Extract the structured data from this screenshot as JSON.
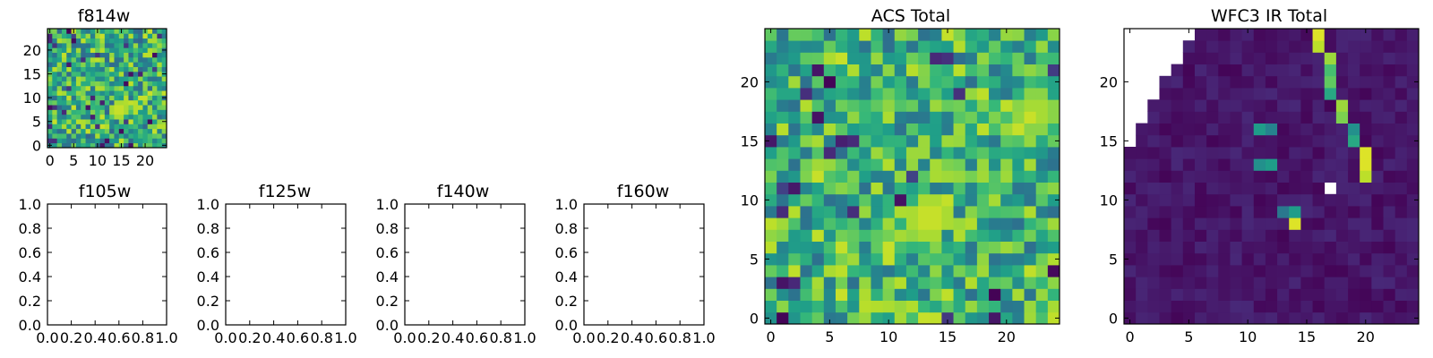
{
  "colors": {
    "colormap": "viridis",
    "viridis_stops": [
      "#440154",
      "#482878",
      "#3e4989",
      "#31688e",
      "#26828e",
      "#1f9e89",
      "#35b779",
      "#6ece58",
      "#b5de2b",
      "#fde725"
    ],
    "axis": "#000000",
    "background": "#ffffff"
  },
  "chart_data": [
    {
      "id": "f814w",
      "title": "f814w",
      "type": "heatmap",
      "colormap": "viridis",
      "grid_shape": [
        25,
        25
      ],
      "xlim": [
        -0.5,
        24.5
      ],
      "ylim": [
        -0.5,
        24.5
      ],
      "xticks": [
        0,
        5,
        10,
        15,
        20
      ],
      "yticks": [
        0,
        5,
        10,
        15,
        20
      ],
      "xtick_labels": [
        "0",
        "5",
        "10",
        "15",
        "20"
      ],
      "ytick_labels": [
        "0",
        "5",
        "10",
        "15",
        "20"
      ],
      "value_range": [
        0,
        1
      ],
      "hotspots": [
        {
          "x": 14.5,
          "y": 7.5,
          "value": 0.95
        }
      ],
      "background_level": 0.62,
      "noise_level": 0.3,
      "seed": 11
    },
    {
      "id": "f105w",
      "title": "f105w",
      "type": "empty-axes",
      "xlim": [
        0.0,
        1.0
      ],
      "ylim": [
        0.0,
        1.0
      ],
      "xticks": [
        0,
        0.2,
        0.4,
        0.6,
        0.8,
        1.0
      ],
      "yticks": [
        0,
        0.2,
        0.4,
        0.6,
        0.8,
        1.0
      ],
      "xtick_labels": [
        "0.0",
        "0.2",
        "0.4",
        "0.6",
        "0.8",
        "1.0"
      ],
      "ytick_labels": [
        "0.0",
        "0.2",
        "0.4",
        "0.6",
        "0.8",
        "1.0"
      ]
    },
    {
      "id": "f125w",
      "title": "f125w",
      "type": "empty-axes",
      "xlim": [
        0.0,
        1.0
      ],
      "ylim": [
        0.0,
        1.0
      ],
      "xticks": [
        0,
        0.2,
        0.4,
        0.6,
        0.8,
        1.0
      ],
      "yticks": [
        0,
        0.2,
        0.4,
        0.6,
        0.8,
        1.0
      ],
      "xtick_labels": [
        "0.0",
        "0.2",
        "0.4",
        "0.6",
        "0.8",
        "1.0"
      ],
      "ytick_labels": [
        "0.0",
        "0.2",
        "0.4",
        "0.6",
        "0.8",
        "1.0"
      ]
    },
    {
      "id": "f140w",
      "title": "f140w",
      "type": "empty-axes",
      "xlim": [
        0.0,
        1.0
      ],
      "ylim": [
        0.0,
        1.0
      ],
      "xticks": [
        0,
        0.2,
        0.4,
        0.6,
        0.8,
        1.0
      ],
      "yticks": [
        0,
        0.2,
        0.4,
        0.6,
        0.8,
        1.0
      ],
      "xtick_labels": [
        "0.0",
        "0.2",
        "0.4",
        "0.6",
        "0.8",
        "1.0"
      ],
      "ytick_labels": [
        "0.0",
        "0.2",
        "0.4",
        "0.6",
        "0.8",
        "1.0"
      ]
    },
    {
      "id": "f160w",
      "title": "f160w",
      "type": "empty-axes",
      "xlim": [
        0.0,
        1.0
      ],
      "ylim": [
        0.0,
        1.0
      ],
      "xticks": [
        0,
        0.2,
        0.4,
        0.6,
        0.8,
        1.0
      ],
      "yticks": [
        0,
        0.2,
        0.4,
        0.6,
        0.8,
        1.0
      ],
      "xtick_labels": [
        "0.0",
        "0.2",
        "0.4",
        "0.6",
        "0.8",
        "1.0"
      ],
      "ytick_labels": [
        "0.0",
        "0.2",
        "0.4",
        "0.6",
        "0.8",
        "1.0"
      ]
    },
    {
      "id": "acs-total",
      "title": "ACS Total",
      "type": "heatmap",
      "colormap": "viridis",
      "grid_shape": [
        25,
        25
      ],
      "xlim": [
        -0.5,
        24.5
      ],
      "ylim": [
        -0.5,
        24.5
      ],
      "xticks": [
        0,
        5,
        10,
        15,
        20
      ],
      "yticks": [
        0,
        5,
        10,
        15,
        20
      ],
      "xtick_labels": [
        "0",
        "5",
        "10",
        "15",
        "20"
      ],
      "ytick_labels": [
        "0",
        "5",
        "10",
        "15",
        "20"
      ],
      "value_range": [
        0,
        1
      ],
      "hotspots": [
        {
          "x": 13.5,
          "y": 8.5,
          "value": 0.95
        },
        {
          "x": 22.5,
          "y": 17.5,
          "value": 0.9
        }
      ],
      "background_level": 0.64,
      "noise_level": 0.28,
      "seed": 37
    },
    {
      "id": "wfc3-ir-total",
      "title": "WFC3 IR Total",
      "type": "heatmap",
      "colormap": "viridis",
      "grid_shape": [
        25,
        25
      ],
      "xlim": [
        -0.5,
        24.5
      ],
      "ylim": [
        -0.5,
        24.5
      ],
      "xticks": [
        0,
        5,
        10,
        15,
        20
      ],
      "yticks": [
        0,
        5,
        10,
        15,
        20
      ],
      "xtick_labels": [
        "0",
        "5",
        "10",
        "15",
        "20"
      ],
      "ytick_labels": [
        "0",
        "5",
        "10",
        "15",
        "20"
      ],
      "value_range": [
        0,
        1
      ],
      "background_level": 0.06,
      "noise_level": 0.05,
      "seed": 73,
      "bright_cells": [
        {
          "x": 16,
          "y": 24,
          "value": 0.95
        },
        {
          "x": 16,
          "y": 23,
          "value": 0.9
        },
        {
          "x": 17,
          "y": 22,
          "value": 0.85
        },
        {
          "x": 17,
          "y": 21,
          "value": 0.7
        },
        {
          "x": 17,
          "y": 20,
          "value": 0.75
        },
        {
          "x": 17,
          "y": 19,
          "value": 0.6
        },
        {
          "x": 18,
          "y": 18,
          "value": 0.85
        },
        {
          "x": 18,
          "y": 17,
          "value": 0.8
        },
        {
          "x": 19,
          "y": 16,
          "value": 0.5
        },
        {
          "x": 19,
          "y": 15,
          "value": 0.6
        },
        {
          "x": 20,
          "y": 14,
          "value": 0.95
        },
        {
          "x": 20,
          "y": 13,
          "value": 0.95
        },
        {
          "x": 20,
          "y": 12,
          "value": 0.9
        },
        {
          "x": 11,
          "y": 16,
          "value": 0.55
        },
        {
          "x": 12,
          "y": 16,
          "value": 0.45
        },
        {
          "x": 11,
          "y": 13,
          "value": 0.5
        },
        {
          "x": 12,
          "y": 13,
          "value": 0.55
        },
        {
          "x": 13,
          "y": 9,
          "value": 0.4
        },
        {
          "x": 14,
          "y": 9,
          "value": 0.55
        },
        {
          "x": 14,
          "y": 8,
          "value": 0.95
        }
      ],
      "missing_cells": [
        {
          "rows": [
            24
          ],
          "cols": [
            0,
            1,
            2,
            3,
            4,
            5
          ]
        },
        {
          "rows": [
            23
          ],
          "cols": [
            0,
            1,
            2,
            3,
            4
          ]
        },
        {
          "rows": [
            22
          ],
          "cols": [
            0,
            1,
            2,
            3,
            4
          ]
        },
        {
          "rows": [
            21
          ],
          "cols": [
            0,
            1,
            2,
            3
          ]
        },
        {
          "rows": [
            20
          ],
          "cols": [
            0,
            1,
            2
          ]
        },
        {
          "rows": [
            19
          ],
          "cols": [
            0,
            1,
            2
          ]
        },
        {
          "rows": [
            18
          ],
          "cols": [
            0,
            1
          ]
        },
        {
          "rows": [
            17
          ],
          "cols": [
            0,
            1
          ]
        },
        {
          "rows": [
            16
          ],
          "cols": [
            0
          ]
        },
        {
          "rows": [
            15
          ],
          "cols": [
            0
          ]
        },
        {
          "rows": [
            11
          ],
          "cols": [
            17
          ]
        }
      ]
    }
  ]
}
